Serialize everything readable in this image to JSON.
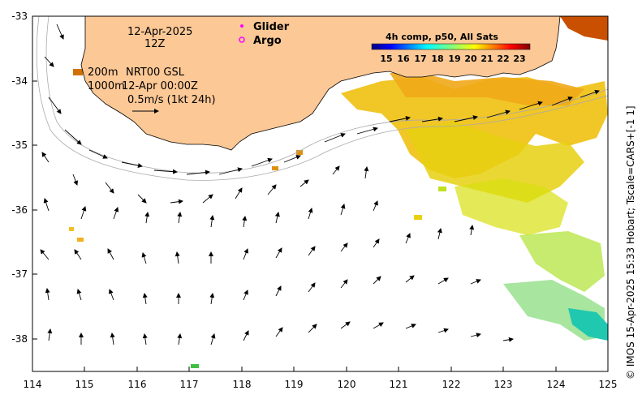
{
  "map": {
    "date": "12-Apr-2025",
    "time": "12Z",
    "depth_line1": "200m",
    "depth_line2": "1000m",
    "product": "NRT00 GSL",
    "product_time": "12-Apr 00:00Z",
    "scale_label": "0.5m/s (1kt 24h)",
    "legend": {
      "glider": "Glider",
      "argo": "Argo"
    },
    "colorbar": {
      "title": "4h comp, p50, All Sats",
      "ticks": [
        "15",
        "16",
        "17",
        "18",
        "19",
        "20",
        "21",
        "22",
        "23"
      ]
    },
    "x_ticks": [
      "114",
      "115",
      "116",
      "117",
      "118",
      "119",
      "120",
      "121",
      "122",
      "123",
      "124",
      "125"
    ],
    "y_ticks": [
      "-33",
      "-34",
      "-35",
      "-36",
      "-37",
      "-38"
    ],
    "credit": "© IMOS 15-Apr-2025 15:33 Hobart; Tscale=CARS+[-1 1]",
    "colors": {
      "land": "#fcc896",
      "glider": "#ff00ff",
      "argo": "#ff00ff"
    }
  }
}
